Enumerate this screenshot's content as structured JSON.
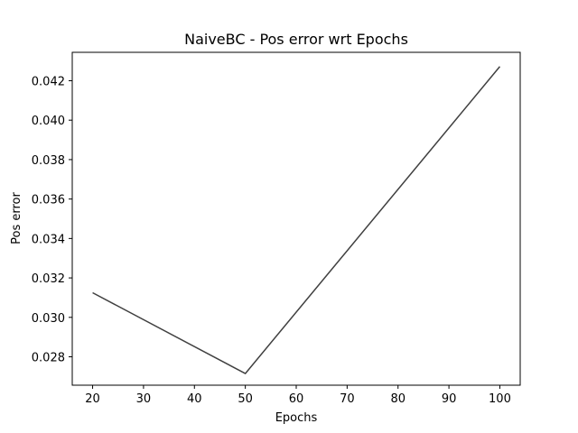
{
  "chart_data": {
    "type": "line",
    "title": "NaiveBC - Pos error wrt Epochs",
    "xlabel": "Epochs",
    "ylabel": "Pos error",
    "xlim": [
      16,
      104
    ],
    "ylim": [
      0.02656,
      0.04344
    ],
    "xticks": [
      20,
      30,
      40,
      50,
      60,
      70,
      80,
      90,
      100
    ],
    "yticks": [
      0.028,
      0.03,
      0.032,
      0.034,
      0.036,
      0.038,
      0.04,
      0.042
    ],
    "ytick_labels": [
      "0.028",
      "0.030",
      "0.032",
      "0.034",
      "0.036",
      "0.038",
      "0.040",
      "0.042"
    ],
    "grid": false,
    "series": [
      {
        "x": [
          20,
          50,
          100
        ],
        "values": [
          0.03125,
          0.02715,
          0.04272
        ],
        "color": "#404040"
      }
    ]
  }
}
